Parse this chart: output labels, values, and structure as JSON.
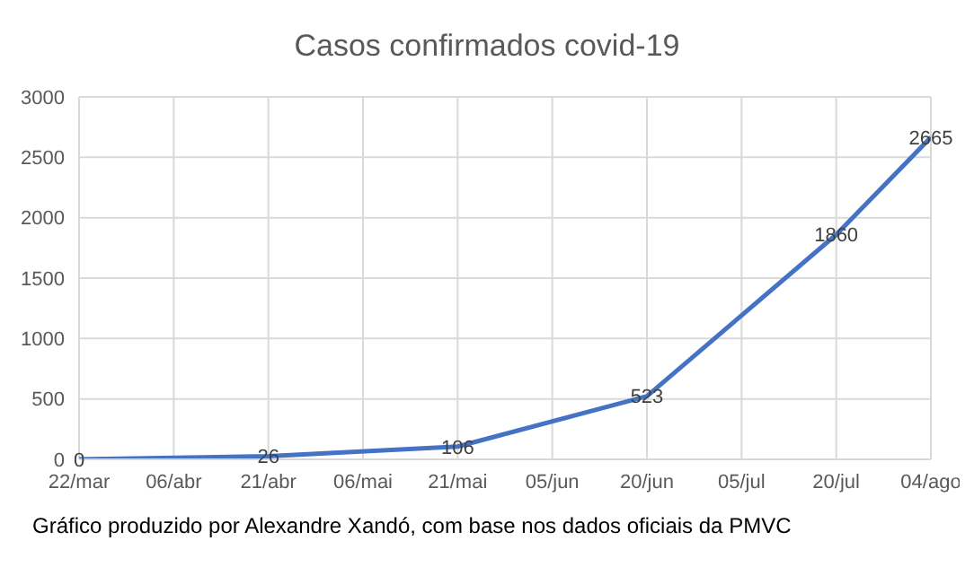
{
  "chart_data": {
    "type": "line",
    "title": "Casos confirmados covid-19",
    "categories": [
      "22/mar",
      "06/abr",
      "21/abr",
      "06/mai",
      "21/mai",
      "05/jun",
      "20/jun",
      "05/jul",
      "20/jul",
      "04/ago"
    ],
    "values": [
      0,
      null,
      26,
      null,
      106,
      null,
      523,
      null,
      1860,
      2665
    ],
    "color": "#4472c4",
    "ylim": [
      0,
      3000
    ],
    "yticks": [
      0,
      500,
      1000,
      1500,
      2000,
      2500,
      3000
    ],
    "grid": true,
    "data_labels": true,
    "marker": "none",
    "annotations": [
      "Gráfico produzido por Alexandre Xandó, com base nos dados oficiais da PMVC"
    ]
  }
}
